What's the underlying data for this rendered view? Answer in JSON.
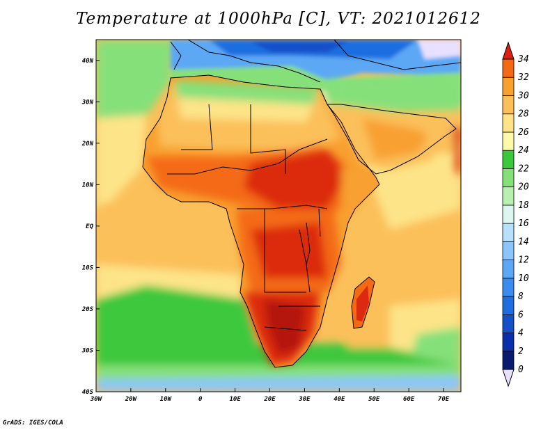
{
  "title": "Temperature at 1000hPa [C], VT: 2021012612",
  "credit": "GrADS: IGES/COLA",
  "map": {
    "lon_range": [
      -30,
      75
    ],
    "lat_range": [
      -40,
      45
    ],
    "lon_ticks": [
      {
        "value": -30,
        "label": "30W"
      },
      {
        "value": -20,
        "label": "20W"
      },
      {
        "value": -10,
        "label": "10W"
      },
      {
        "value": 0,
        "label": "0"
      },
      {
        "value": 10,
        "label": "10E"
      },
      {
        "value": 20,
        "label": "20E"
      },
      {
        "value": 30,
        "label": "30E"
      },
      {
        "value": 40,
        "label": "40E"
      },
      {
        "value": 50,
        "label": "50E"
      },
      {
        "value": 60,
        "label": "60E"
      },
      {
        "value": 70,
        "label": "70E"
      }
    ],
    "lat_ticks": [
      {
        "value": 40,
        "label": "40N"
      },
      {
        "value": 30,
        "label": "30N"
      },
      {
        "value": 20,
        "label": "20N"
      },
      {
        "value": 10,
        "label": "10N"
      },
      {
        "value": 0,
        "label": "EQ"
      },
      {
        "value": -10,
        "label": "10S"
      },
      {
        "value": -20,
        "label": "20S"
      },
      {
        "value": -30,
        "label": "30S"
      },
      {
        "value": -40,
        "label": "40S"
      }
    ]
  },
  "colorbar": {
    "levels": [
      "0",
      "2",
      "4",
      "6",
      "8",
      "10",
      "12",
      "14",
      "16",
      "18",
      "20",
      "22",
      "24",
      "26",
      "28",
      "30",
      "32",
      "34"
    ],
    "colors": [
      "#0a1a6e",
      "#0a2fa8",
      "#1450c8",
      "#1e6ee0",
      "#3c8cf0",
      "#5ca8f5",
      "#8cc6f8",
      "#b6e0fb",
      "#dcf6f0",
      "#b8f0b0",
      "#86e07a",
      "#3cc83c",
      "#fffaaa",
      "#fde488",
      "#fbc05a",
      "#f8a030",
      "#f46a14",
      "#dc2a10",
      "#b41208"
    ],
    "under_color": "#e8e0ff",
    "over_color": "#dc1e0e"
  },
  "colors": {
    "ocean_warm": "#fde488",
    "ocean_mid": "#fbc05a",
    "ocean_cool": "#3cc83c",
    "med": "#5ca8f5",
    "land_hot": "#f46a14",
    "land_hottest": "#dc2a10",
    "land_warm": "#f8a030",
    "sahara": "#fbc05a",
    "north": "#86e07a",
    "europe": "#3c8cf0"
  }
}
